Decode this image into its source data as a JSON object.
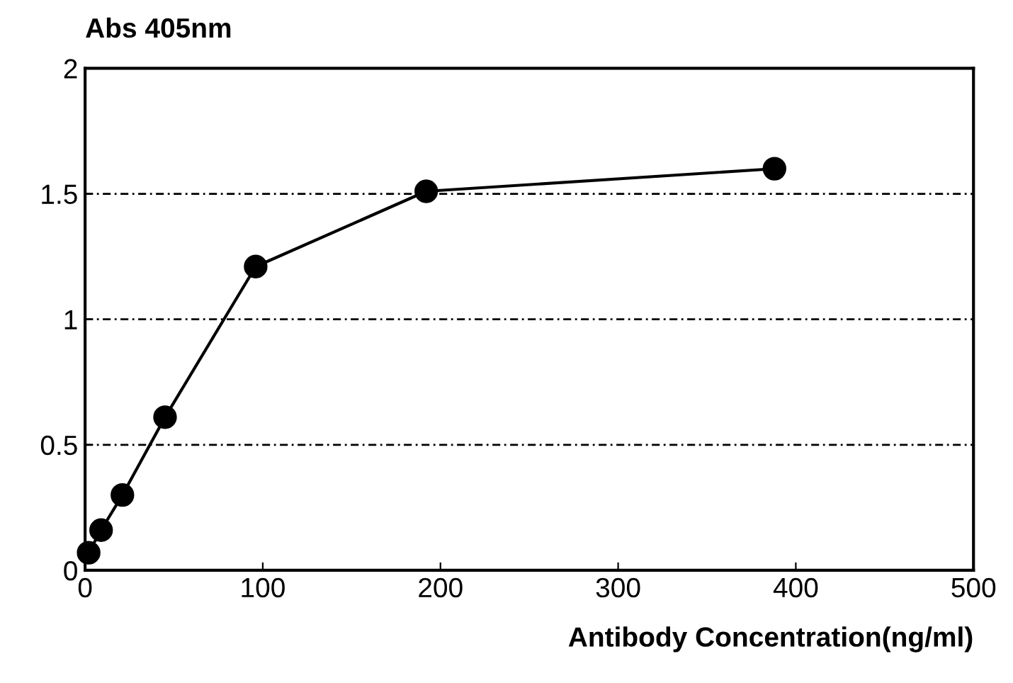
{
  "chart_data": {
    "type": "line",
    "xlabel": "Antibody Concentration(ng/ml)",
    "ylabel": "Abs 405nm",
    "x": [
      2,
      9,
      21,
      45,
      96,
      192,
      388
    ],
    "series": [
      {
        "color": "#000000",
        "values": [
          0.07,
          0.16,
          0.3,
          0.61,
          1.21,
          1.51,
          1.6
        ]
      }
    ],
    "xlim": [
      0,
      500
    ],
    "xticks": [
      0,
      100,
      200,
      300,
      400,
      500
    ],
    "ylim": [
      0,
      2
    ],
    "yticks": [
      0,
      {
        "value": 0.5,
        "label": "0.5"
      },
      1,
      {
        "value": 1.5,
        "label": "1.5"
      },
      2
    ],
    "grid": "y",
    "marker": "circle",
    "line_style": "solid"
  }
}
